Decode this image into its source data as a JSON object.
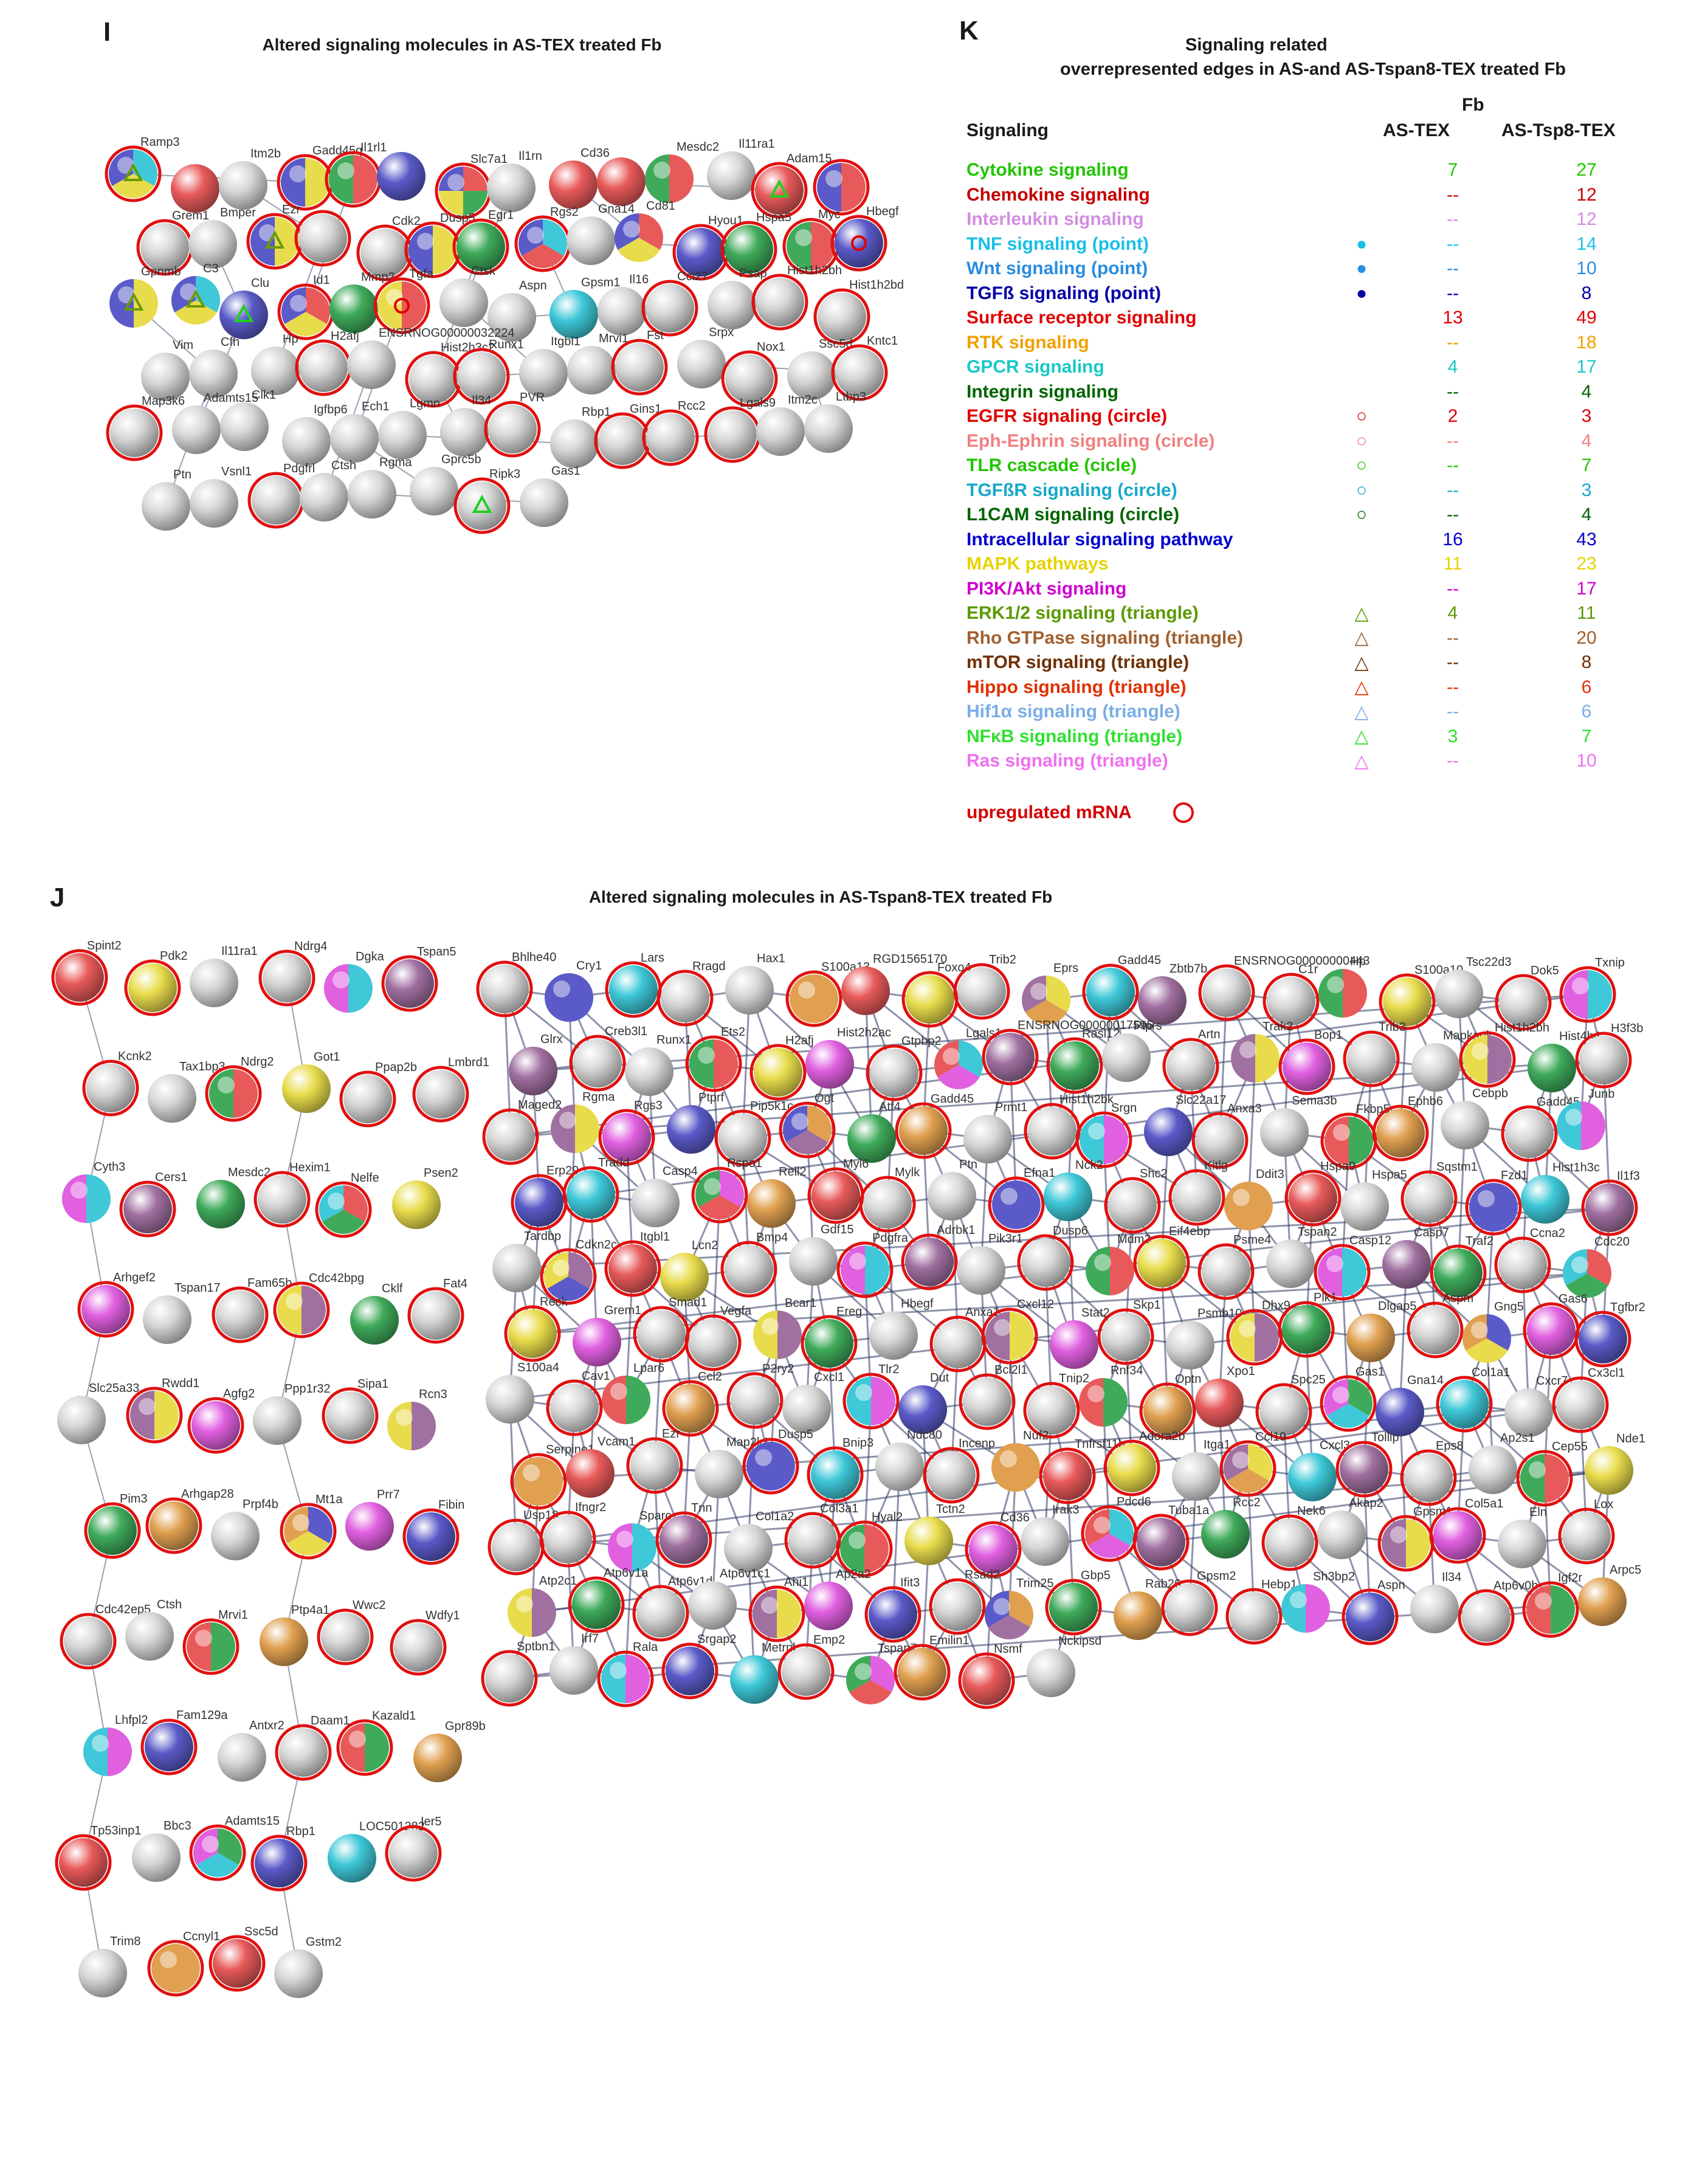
{
  "panel_i": {
    "letter": "I",
    "title": "Altered signaling molecules in AS-TEX treated Fb",
    "nodes": [
      {
        "label": "Ramp3",
        "colors": [
          "#3ec8d8",
          "#e8dc4c",
          "#5a5ac8"
        ],
        "ring": true,
        "marker": "tri-olive"
      },
      {
        "label": "",
        "colors": [
          "#e85a5a"
        ],
        "ring": false
      },
      {
        "label": "Itm2b",
        "colors": [],
        "ring": false
      },
      {
        "label": "Gadd45g",
        "colors": [
          "#e8dc4c",
          "#5a5ac8"
        ],
        "ring": true
      },
      {
        "label": "Il1rl1",
        "colors": [
          "#e85a5a",
          "#3faa5a"
        ],
        "ring": true
      },
      {
        "label": "",
        "colors": [
          "#5a5ac8"
        ],
        "ring": false
      },
      {
        "label": "Slc7a1",
        "colors": [
          "#e85a5a",
          "#3faa5a",
          "#e8dc4c",
          "#5a5ac8"
        ],
        "ring": true
      },
      {
        "label": "Il1rn",
        "colors": [],
        "ring": false
      },
      {
        "label": "Cd36",
        "colors": [
          "#e85a5a"
        ],
        "ring": false
      },
      {
        "label": "",
        "colors": [
          "#e85a5a"
        ],
        "ring": false
      },
      {
        "label": "Mesdc2",
        "colors": [
          "#e85a5a",
          "#3faa5a"
        ],
        "ring": false
      },
      {
        "label": "Il11ra1",
        "colors": [],
        "ring": false
      },
      {
        "label": "Adam15",
        "colors": [
          "#e85a5a"
        ],
        "ring": true,
        "marker": "tri-green"
      },
      {
        "label": "",
        "colors": [
          "#e85a5a",
          "#5a5ac8"
        ],
        "ring": true
      },
      {
        "label": "Grem1",
        "colors": [],
        "ring": true
      },
      {
        "label": "Bmper",
        "colors": [],
        "ring": false
      },
      {
        "label": "Ezr",
        "colors": [
          "#e8dc4c",
          "#5a5ac8"
        ],
        "ring": true,
        "marker": "tri-olive"
      },
      {
        "label": "",
        "colors": [],
        "ring": true
      },
      {
        "label": "Cdk2",
        "colors": [],
        "ring": true
      },
      {
        "label": "Dusp5",
        "colors": [
          "#e8dc4c",
          "#5a5ac8"
        ],
        "ring": true
      },
      {
        "label": "Egr1",
        "colors": [
          "#3faa5a"
        ],
        "ring": true
      },
      {
        "label": "Rgs2",
        "colors": [
          "#3ec8d8",
          "#e85a5a",
          "#5a5ac8"
        ],
        "ring": true
      },
      {
        "label": "Gna14",
        "colors": [],
        "ring": false
      },
      {
        "label": "Cd81",
        "colors": [
          "#e85a5a",
          "#e8dc4c",
          "#5a5ac8"
        ],
        "ring": false
      },
      {
        "label": "Hyou1",
        "colors": [
          "#5a5ac8"
        ],
        "ring": true
      },
      {
        "label": "Hspa5",
        "colors": [
          "#3faa5a"
        ],
        "ring": true
      },
      {
        "label": "Myc",
        "colors": [
          "#e85a5a",
          "#3faa5a"
        ],
        "ring": true
      },
      {
        "label": "Hbegf",
        "colors": [
          "#5a5ac8"
        ],
        "ring": true,
        "marker": "circ-red"
      },
      {
        "label": "Gpnmb",
        "colors": [
          "#e8dc4c",
          "#5a5ac8"
        ],
        "ring": false,
        "marker": "tri-olive"
      },
      {
        "label": "C3",
        "colors": [
          "#3ec8d8",
          "#e8dc4c",
          "#5a5ac8"
        ],
        "ring": false,
        "marker": "tri-olive"
      },
      {
        "label": "Clu",
        "colors": [
          "#5a5ac8"
        ],
        "ring": false,
        "marker": "tri-green"
      },
      {
        "label": "Id1",
        "colors": [
          "#e85a5a",
          "#e8dc4c",
          "#5a5ac8"
        ],
        "ring": true
      },
      {
        "label": "Mmp2",
        "colors": [
          "#3faa5a"
        ],
        "ring": false
      },
      {
        "label": "Tgfa",
        "colors": [
          "#e85a5a",
          "#e8dc4c"
        ],
        "ring": true,
        "marker": "circ-red"
      },
      {
        "label": "Ctsk",
        "colors": [],
        "ring": false
      },
      {
        "label": "Aspn",
        "colors": [],
        "ring": false
      },
      {
        "label": "Gpsm1",
        "colors": [
          "#3ec8d8"
        ],
        "ring": false
      },
      {
        "label": "Il16",
        "colors": [],
        "ring": false
      },
      {
        "label": "Ccl27",
        "colors": [],
        "ring": true
      },
      {
        "label": "Psap",
        "colors": [],
        "ring": false
      },
      {
        "label": "Hist1h2bh",
        "colors": [],
        "ring": true
      },
      {
        "label": "Hist1h2bd",
        "colors": [],
        "ring": true
      },
      {
        "label": "Vim",
        "colors": [],
        "ring": false
      },
      {
        "label": "Cfh",
        "colors": [],
        "ring": false
      },
      {
        "label": "Hp",
        "colors": [],
        "ring": false
      },
      {
        "label": "H2afj",
        "colors": [],
        "ring": true
      },
      {
        "label": "ENSRNOG00000032224",
        "colors": [],
        "ring": false
      },
      {
        "label": "Hist2h3c2",
        "colors": [],
        "ring": true
      },
      {
        "label": "Runx1",
        "colors": [],
        "ring": true
      },
      {
        "label": "Itgbl1",
        "colors": [],
        "ring": false
      },
      {
        "label": "Mrvi1",
        "colors": [],
        "ring": false
      },
      {
        "label": "Fst",
        "colors": [],
        "ring": true
      },
      {
        "label": "Srpx",
        "colors": [],
        "ring": false
      },
      {
        "label": "Nox1",
        "colors": [],
        "ring": true
      },
      {
        "label": "Ssc5d",
        "colors": [],
        "ring": false
      },
      {
        "label": "Kntc1",
        "colors": [],
        "ring": true
      },
      {
        "label": "Map3k6",
        "colors": [],
        "ring": true
      },
      {
        "label": "Adamts15",
        "colors": [],
        "ring": false
      },
      {
        "label": "Clk1",
        "colors": [],
        "ring": false
      },
      {
        "label": "Igfbp6",
        "colors": [],
        "ring": false
      },
      {
        "label": "Ech1",
        "colors": [],
        "ring": false
      },
      {
        "label": "Lgmn",
        "colors": [],
        "ring": false
      },
      {
        "label": "Il34",
        "colors": [],
        "ring": false
      },
      {
        "label": "PVR",
        "colors": [],
        "ring": true
      },
      {
        "label": "Rbp1",
        "colors": [],
        "ring": false
      },
      {
        "label": "Gins1",
        "colors": [],
        "ring": true
      },
      {
        "label": "Rcc2",
        "colors": [],
        "ring": true
      },
      {
        "label": "Lgals9",
        "colors": [],
        "ring": true
      },
      {
        "label": "Itm2c",
        "colors": [],
        "ring": false
      },
      {
        "label": "Ltbp3",
        "colors": [],
        "ring": false
      },
      {
        "label": "Ptn",
        "colors": [],
        "ring": false
      },
      {
        "label": "Vsnl1",
        "colors": [],
        "ring": false
      },
      {
        "label": "Pdgfrl",
        "colors": [],
        "ring": true
      },
      {
        "label": "Ctsh",
        "colors": [],
        "ring": false
      },
      {
        "label": "Rgma",
        "colors": [],
        "ring": false
      },
      {
        "label": "Gprc5b",
        "colors": [],
        "ring": false
      },
      {
        "label": "Ripk3",
        "colors": [],
        "ring": true,
        "marker": "tri-green"
      },
      {
        "label": "Gas1",
        "colors": [],
        "ring": false
      }
    ]
  },
  "panel_k": {
    "letter": "K",
    "title_line1": "Signaling related",
    "title_line2": "overrepresented edges in AS-and AS-Tspan8-TEX treated Fb",
    "col_group": "Fb",
    "col_signaling": "Signaling",
    "col_as": "AS-TEX",
    "col_tsp8": "AS-Tsp8-TEX",
    "rows": [
      {
        "label": "Cytokine signaling",
        "color": "#22c400",
        "as": "7",
        "tsp8": "27",
        "marker": ""
      },
      {
        "label": "Chemokine signaling",
        "color": "#c40000",
        "as": "--",
        "tsp8": "12",
        "marker": ""
      },
      {
        "label": "Interleukin signaling",
        "color": "#d28ee0",
        "as": "--",
        "tsp8": "12",
        "marker": ""
      },
      {
        "label": "TNF signaling (point)",
        "color": "#18c0e6",
        "as": "--",
        "tsp8": "14",
        "marker": "●"
      },
      {
        "label": "Wnt signaling (point)",
        "color": "#2b8ce0",
        "as": "--",
        "tsp8": "10",
        "marker": "●"
      },
      {
        "label": "TGFß signaling (point)",
        "color": "#0000a8",
        "as": "--",
        "tsp8": "8",
        "marker": "●"
      },
      {
        "label": "Surface receptor signaling",
        "color": "#e00000",
        "as": "13",
        "tsp8": "49",
        "marker": ""
      },
      {
        "label": "RTK signaling",
        "color": "#f0a000",
        "as": "--",
        "tsp8": "18",
        "marker": ""
      },
      {
        "label": "GPCR signaling",
        "color": "#18c8c8",
        "as": "4",
        "tsp8": "17",
        "marker": ""
      },
      {
        "label": "Integrin signaling",
        "color": "#006400",
        "as": "--",
        "tsp8": "4",
        "marker": ""
      },
      {
        "label": "EGFR signaling (circle)",
        "color": "#e00000",
        "as": "2",
        "tsp8": "3",
        "marker": "○"
      },
      {
        "label": "Eph-Ephrin signaling (circle)",
        "color": "#f08080",
        "as": "--",
        "tsp8": "4",
        "marker": "○"
      },
      {
        "label": "TLR cascade (cicle)",
        "color": "#22c400",
        "as": "--",
        "tsp8": "7",
        "marker": "○"
      },
      {
        "label": "TGFßR signaling (circle)",
        "color": "#18a8c8",
        "as": "--",
        "tsp8": "3",
        "marker": "○"
      },
      {
        "label": "L1CAM signaling (circle)",
        "color": "#006400",
        "as": "--",
        "tsp8": "4",
        "marker": "○"
      },
      {
        "label": "Intracellular signaling pathway",
        "color": "#0000d0",
        "as": "16",
        "tsp8": "43",
        "marker": ""
      },
      {
        "label": "MAPK pathways",
        "color": "#e6d200",
        "as": "11",
        "tsp8": "23",
        "marker": ""
      },
      {
        "label": "PI3K/Akt signaling",
        "color": "#d000d0",
        "as": "--",
        "tsp8": "17",
        "marker": ""
      },
      {
        "label": "ERK1/2 signaling (triangle)",
        "color": "#5a9a00",
        "as": "4",
        "tsp8": "11",
        "marker": "△"
      },
      {
        "label": "Rho GTPase signaling (triangle)",
        "color": "#a06030",
        "as": "--",
        "tsp8": "20",
        "marker": "△"
      },
      {
        "label": "mTOR signaling (triangle)",
        "color": "#703000",
        "as": "--",
        "tsp8": "8",
        "marker": "△"
      },
      {
        "label": "Hippo signaling (triangle)",
        "color": "#e03000",
        "as": "--",
        "tsp8": "6",
        "marker": "△"
      },
      {
        "label": "Hif1α signaling (triangle)",
        "color": "#7aaee6",
        "as": "--",
        "tsp8": "6",
        "marker": "△"
      },
      {
        "label": "NFκB signaling (triangle)",
        "color": "#30e030",
        "as": "3",
        "tsp8": "7",
        "marker": "△"
      },
      {
        "label": "Ras signaling (triangle)",
        "color": "#f070f0",
        "as": "--",
        "tsp8": "10",
        "marker": "△"
      }
    ],
    "legend_label": "upregulated mRNA"
  },
  "panel_j": {
    "letter": "J",
    "title": "Altered signaling molecules in AS-Tspan8-TEX treated Fb",
    "labels": [
      "Spint2",
      "Pdk2",
      "Il11ra1",
      "Ndrg4",
      "Dgka",
      "Tspan5",
      "Kcnk2",
      "Tax1bp3",
      "Ndrg2",
      "Got1",
      "Ppap2b",
      "Lmbrd1",
      "Cyth3",
      "Cers1",
      "Mesdc2",
      "Hexim1",
      "Nelfe",
      "Psen2",
      "Arhgef2",
      "Tspan17",
      "Fam65b",
      "Cdc42bpg",
      "Cklf",
      "Fat4",
      "Slc25a33",
      "Rwdd1",
      "Agfg2",
      "Ppp1r32",
      "Sipa1",
      "Rcn3",
      "Pim3",
      "Arhgap28",
      "Prpf4b",
      "Mt1a",
      "Prr7",
      "Fibin",
      "Cdc42ep5",
      "Ctsh",
      "Mrvi1",
      "Ptp4a1",
      "Wwc2",
      "Wdfy1",
      "Lhfpl2",
      "Fam129a",
      "Antxr2",
      "Daam1",
      "Kazald1",
      "Gpr89b",
      "Tp53inp1",
      "Bbc3",
      "Adamts15",
      "Rbp1",
      "LOC501282",
      "Ier5",
      "Trim8",
      "Ccnyl1",
      "Ssc5d",
      "Gstm2",
      "Bhlhe40",
      "Cry1",
      "Lars",
      "Rragd",
      "Hax1",
      "S100a13",
      "RGD1565170",
      "Foxo4",
      "Trib2",
      "Eprs",
      "Gadd45",
      "Zbtb7b",
      "ENSRNOG00000000443",
      "C1r",
      "Hp",
      "S100a10",
      "Tsc22d3",
      "Dok5",
      "Txnip",
      "Glrx",
      "Creb3l1",
      "Runx1",
      "Ets2",
      "H2afj",
      "Hist2h2ac",
      "Gtpbp2",
      "Lgals1",
      "ENSRNOG00000017595",
      "Rasl12",
      "Ptprs",
      "Artn",
      "Trak2",
      "Bop1",
      "Trib3",
      "Mapkapk",
      "Hist1h2bh",
      "Hist4h4",
      "H3f3b",
      "Maged2",
      "Rgma",
      "Rgs3",
      "Ptprf",
      "Pip5k1c",
      "Ogt",
      "Atf4",
      "Gadd45",
      "Prmt1",
      "Hist1h2bk",
      "Srgn",
      "Slc22a17",
      "Anxa3",
      "Sema3b",
      "Fkbp5",
      "Ephb6",
      "Cebpb",
      "Gadd45",
      "Junb",
      "Erp29",
      "Tradd",
      "Casp4",
      "Rspo1",
      "Rell2",
      "Myl6",
      "Mylk",
      "Ptn",
      "Efna1",
      "Nck2",
      "Shc2",
      "Kitlg",
      "Ddit3",
      "Hspa9",
      "Hspa5",
      "Sqstm1",
      "Fzd1",
      "Hist1h3c",
      "Il1f3",
      "Tardbp",
      "Cdkn2c",
      "Itgbl1",
      "Lcn2",
      "Bmp4",
      "Gdf15",
      "Pdgfra",
      "Adrbk1",
      "Pik3r1",
      "Dusp6",
      "Mdm2",
      "Eif4ebp",
      "Psme4",
      "Tspan2",
      "Casp12",
      "Casp7",
      "Traf2",
      "Ccna2",
      "Cdc20",
      "Reck",
      "Grem1",
      "Smad1",
      "Vegfa",
      "Bcar1",
      "Ereg",
      "Hbegf",
      "Anxa1",
      "Cxcl12",
      "Stat2",
      "Skp1",
      "Psmb10",
      "Dhx9",
      "Plk1",
      "Dlgap5",
      "Aspm",
      "Gng5",
      "Gas6",
      "Tgfbr2",
      "S100a4",
      "Cav1",
      "Lpar6",
      "Ccl2",
      "P2ry2",
      "Cxcl1",
      "Tlr2",
      "Dut",
      "Bcl2l1",
      "Tnip2",
      "Rnf34",
      "Optn",
      "Xpo1",
      "Spc25",
      "Gas1",
      "Gna14",
      "Col1a1",
      "Cxcr7",
      "Cx3cl1",
      "Serpine1",
      "Vcam1",
      "Ezr",
      "Map2k1",
      "Dusp5",
      "Bnip3",
      "Ndc80",
      "Incenp",
      "Nuf2",
      "Tnfrsf11b",
      "Adora2b",
      "Itga1",
      "Ccl19",
      "Cxcl3",
      "Tollip",
      "Eps8",
      "Ap2s1",
      "Cep55",
      "Nde1",
      "Usp18",
      "Ifngr2",
      "Sparc",
      "Tnn",
      "Col1a2",
      "Col3a1",
      "Hyal2",
      "Tctn2",
      "Cd36",
      "Irak3",
      "Pdcd6",
      "Tuba1a",
      "Rcc2",
      "Nek6",
      "Akap2",
      "Gpsm1",
      "Col5a1",
      "Eln",
      "Lox",
      "Atp2c1",
      "Atp6v1a",
      "Atp6v1d",
      "Atp6v1c1",
      "Ahi1",
      "Ap2a2",
      "Ifit3",
      "Rsad2",
      "Trim25",
      "Gbp5",
      "Rab26",
      "Gpsm2",
      "Hebp1",
      "Sh3bp2",
      "Aspn",
      "Il34",
      "Atp6v0b",
      "Igf2r",
      "Arpc5",
      "Sptbn1",
      "Irf7",
      "Rala",
      "Srgap2",
      "Metrnl",
      "Emp2",
      "Tspan7",
      "Emilin1",
      "Nsmf",
      "Nckipsd"
    ]
  }
}
